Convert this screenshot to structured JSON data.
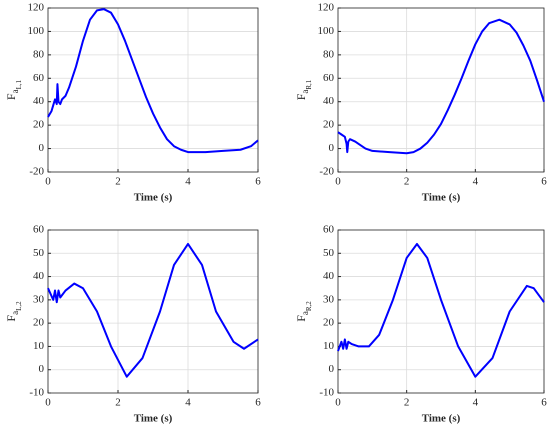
{
  "chart_data": [
    {
      "type": "line",
      "xlabel": "Time (s)",
      "ylabel": "F",
      "ylabel_sub": "a",
      "ylabel_subsub": "L,1",
      "xlim": [
        0,
        6
      ],
      "xticks": [
        0,
        2,
        4,
        6
      ],
      "ylim": [
        -20,
        120
      ],
      "yticks": [
        -20,
        0,
        20,
        40,
        60,
        80,
        100,
        120
      ],
      "grid": true,
      "color": "#0000ff",
      "x": [
        0,
        0.1,
        0.2,
        0.25,
        0.27,
        0.3,
        0.35,
        0.4,
        0.5,
        0.6,
        0.8,
        1.0,
        1.2,
        1.4,
        1.6,
        1.8,
        2.0,
        2.2,
        2.4,
        2.6,
        2.8,
        3.0,
        3.2,
        3.4,
        3.6,
        3.8,
        4.0,
        4.5,
        5.0,
        5.5,
        5.8,
        6.0
      ],
      "values": [
        27,
        32,
        42,
        38,
        55,
        40,
        38,
        42,
        45,
        52,
        70,
        92,
        110,
        118,
        119,
        116,
        106,
        92,
        76,
        60,
        44,
        30,
        18,
        8,
        2,
        -1,
        -3,
        -3,
        -2,
        -1,
        2,
        7
      ]
    },
    {
      "type": "line",
      "xlabel": "Time (s)",
      "ylabel": "F",
      "ylabel_sub": "a",
      "ylabel_subsub": "R,1",
      "xlim": [
        0,
        6
      ],
      "xticks": [
        0,
        2,
        4,
        6
      ],
      "ylim": [
        -20,
        120
      ],
      "yticks": [
        -20,
        0,
        20,
        40,
        60,
        80,
        100,
        120
      ],
      "grid": true,
      "color": "#0000ff",
      "x": [
        0,
        0.1,
        0.2,
        0.25,
        0.27,
        0.3,
        0.35,
        0.5,
        0.8,
        1.0,
        1.5,
        2.0,
        2.2,
        2.4,
        2.6,
        2.8,
        3.0,
        3.2,
        3.4,
        3.6,
        3.8,
        4.0,
        4.2,
        4.4,
        4.7,
        5.0,
        5.2,
        5.4,
        5.6,
        5.8,
        6.0
      ],
      "values": [
        14,
        12,
        10,
        4,
        -3,
        6,
        8,
        6,
        0,
        -2,
        -3,
        -4,
        -3,
        0,
        5,
        12,
        21,
        33,
        46,
        60,
        75,
        89,
        100,
        107,
        110,
        106,
        99,
        88,
        75,
        58,
        40
      ]
    },
    {
      "type": "line",
      "xlabel": "Time (s)",
      "ylabel": "F",
      "ylabel_sub": "a",
      "ylabel_subsub": "L,2",
      "xlim": [
        0,
        6
      ],
      "xticks": [
        0,
        2,
        4,
        6
      ],
      "ylim": [
        -10,
        60
      ],
      "yticks": [
        -10,
        0,
        10,
        20,
        30,
        40,
        50,
        60
      ],
      "grid": true,
      "color": "#0000ff",
      "x": [
        0,
        0.15,
        0.2,
        0.25,
        0.3,
        0.35,
        0.5,
        0.75,
        1.0,
        1.4,
        1.8,
        2.25,
        2.7,
        3.2,
        3.6,
        4.0,
        4.4,
        4.8,
        5.3,
        5.6,
        6.0
      ],
      "values": [
        35,
        30,
        34,
        29,
        34,
        31,
        34,
        37,
        35,
        25,
        10,
        -3,
        5,
        25,
        45,
        54,
        45,
        25,
        12,
        9,
        13
      ]
    },
    {
      "type": "line",
      "xlabel": "Time (s)",
      "ylabel": "F",
      "ylabel_sub": "a",
      "ylabel_subsub": "R,2",
      "xlim": [
        0,
        6
      ],
      "xticks": [
        0,
        2,
        4,
        6
      ],
      "ylim": [
        -10,
        60
      ],
      "yticks": [
        -10,
        0,
        10,
        20,
        30,
        40,
        50,
        60
      ],
      "grid": true,
      "color": "#0000ff",
      "x": [
        0,
        0.1,
        0.15,
        0.2,
        0.25,
        0.3,
        0.4,
        0.6,
        0.9,
        1.2,
        1.6,
        2.0,
        2.3,
        2.6,
        3.0,
        3.5,
        4.0,
        4.5,
        5.0,
        5.5,
        5.7,
        6.0
      ],
      "values": [
        8,
        12,
        9,
        13,
        9,
        12,
        11,
        10,
        10,
        15,
        30,
        48,
        54,
        48,
        30,
        10,
        -3,
        5,
        25,
        36,
        35,
        29
      ]
    }
  ]
}
